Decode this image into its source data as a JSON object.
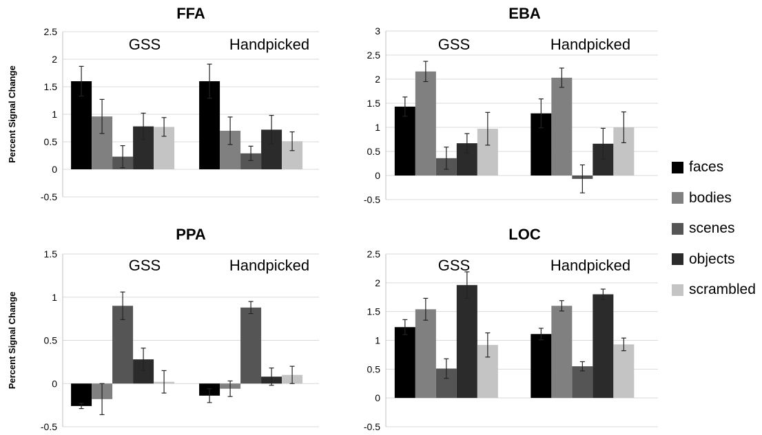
{
  "figure": {
    "series": [
      {
        "name": "faces",
        "color": "#000000"
      },
      {
        "name": "bodies",
        "color": "#808080"
      },
      {
        "name": "scenes",
        "color": "#555555"
      },
      {
        "name": "objects",
        "color": "#2b2b2b"
      },
      {
        "name": "scrambled",
        "color": "#c4c4c4"
      }
    ],
    "legend": {
      "placement": "right",
      "entries": [
        "faces",
        "bodies",
        "scenes",
        "objects",
        "scrambled"
      ]
    }
  },
  "chart_data": [
    {
      "type": "bar",
      "title": "FFA",
      "ylabel": "Percent Signal Change",
      "xlabel": "",
      "categories": [
        "GSS",
        "Handpicked"
      ],
      "ylim": [
        -0.5,
        2.5
      ],
      "yticks": [
        "2.5",
        "2",
        "1.5",
        "1",
        "0.5",
        "0",
        "-0.5"
      ],
      "grid": true,
      "series": [
        {
          "name": "faces",
          "values": [
            1.6,
            1.6
          ],
          "errors": [
            0.27,
            0.31
          ]
        },
        {
          "name": "bodies",
          "values": [
            0.96,
            0.7
          ],
          "errors": [
            0.31,
            0.25
          ]
        },
        {
          "name": "scenes",
          "values": [
            0.23,
            0.29
          ],
          "errors": [
            0.2,
            0.13
          ]
        },
        {
          "name": "objects",
          "values": [
            0.78,
            0.72
          ],
          "errors": [
            0.24,
            0.26
          ]
        },
        {
          "name": "scrambled",
          "values": [
            0.77,
            0.51
          ],
          "errors": [
            0.17,
            0.17
          ]
        }
      ]
    },
    {
      "type": "bar",
      "title": "EBA",
      "ylabel": "",
      "xlabel": "",
      "categories": [
        "GSS",
        "Handpicked"
      ],
      "ylim": [
        -0.5,
        3
      ],
      "yticks": [
        "3",
        "2.5",
        "2",
        "1.5",
        "1",
        "0.5",
        "0",
        "-0.5"
      ],
      "grid": true,
      "series": [
        {
          "name": "faces",
          "values": [
            1.43,
            1.29
          ],
          "errors": [
            0.2,
            0.3
          ]
        },
        {
          "name": "bodies",
          "values": [
            2.16,
            2.03
          ],
          "errors": [
            0.21,
            0.2
          ]
        },
        {
          "name": "scenes",
          "values": [
            0.36,
            -0.07
          ],
          "errors": [
            0.23,
            0.29
          ]
        },
        {
          "name": "objects",
          "values": [
            0.67,
            0.66
          ],
          "errors": [
            0.2,
            0.32
          ]
        },
        {
          "name": "scrambled",
          "values": [
            0.97,
            1.0
          ],
          "errors": [
            0.34,
            0.32
          ]
        }
      ]
    },
    {
      "type": "bar",
      "title": "PPA",
      "ylabel": "Percent Signal Change",
      "xlabel": "",
      "categories": [
        "GSS",
        "Handpicked"
      ],
      "ylim": [
        -0.5,
        1.5
      ],
      "yticks": [
        "1.5",
        "1",
        "0.5",
        "0",
        "-0.5"
      ],
      "grid": true,
      "series": [
        {
          "name": "faces",
          "values": [
            -0.26,
            -0.14
          ],
          "errors": [
            0.03,
            0.08
          ]
        },
        {
          "name": "bodies",
          "values": [
            -0.18,
            -0.06
          ],
          "errors": [
            0.18,
            0.09
          ]
        },
        {
          "name": "scenes",
          "values": [
            0.9,
            0.88
          ],
          "errors": [
            0.16,
            0.07
          ]
        },
        {
          "name": "objects",
          "values": [
            0.28,
            0.08
          ],
          "errors": [
            0.13,
            0.1
          ]
        },
        {
          "name": "scrambled",
          "values": [
            0.02,
            0.1
          ],
          "errors": [
            0.13,
            0.1
          ]
        }
      ]
    },
    {
      "type": "bar",
      "title": "LOC",
      "ylabel": "",
      "xlabel": "",
      "categories": [
        "GSS",
        "Handpicked"
      ],
      "ylim": [
        -0.5,
        2.5
      ],
      "yticks": [
        "2.5",
        "2",
        "1.5",
        "1",
        "0.5",
        "0",
        "-0.5"
      ],
      "grid": true,
      "series": [
        {
          "name": "faces",
          "values": [
            1.23,
            1.11
          ],
          "errors": [
            0.13,
            0.1
          ]
        },
        {
          "name": "bodies",
          "values": [
            1.54,
            1.6
          ],
          "errors": [
            0.19,
            0.09
          ]
        },
        {
          "name": "scenes",
          "values": [
            0.51,
            0.55
          ],
          "errors": [
            0.17,
            0.08
          ]
        },
        {
          "name": "objects",
          "values": [
            1.96,
            1.8
          ],
          "errors": [
            0.23,
            0.09
          ]
        },
        {
          "name": "scrambled",
          "values": [
            0.92,
            0.93
          ],
          "errors": [
            0.21,
            0.11
          ]
        }
      ]
    }
  ]
}
